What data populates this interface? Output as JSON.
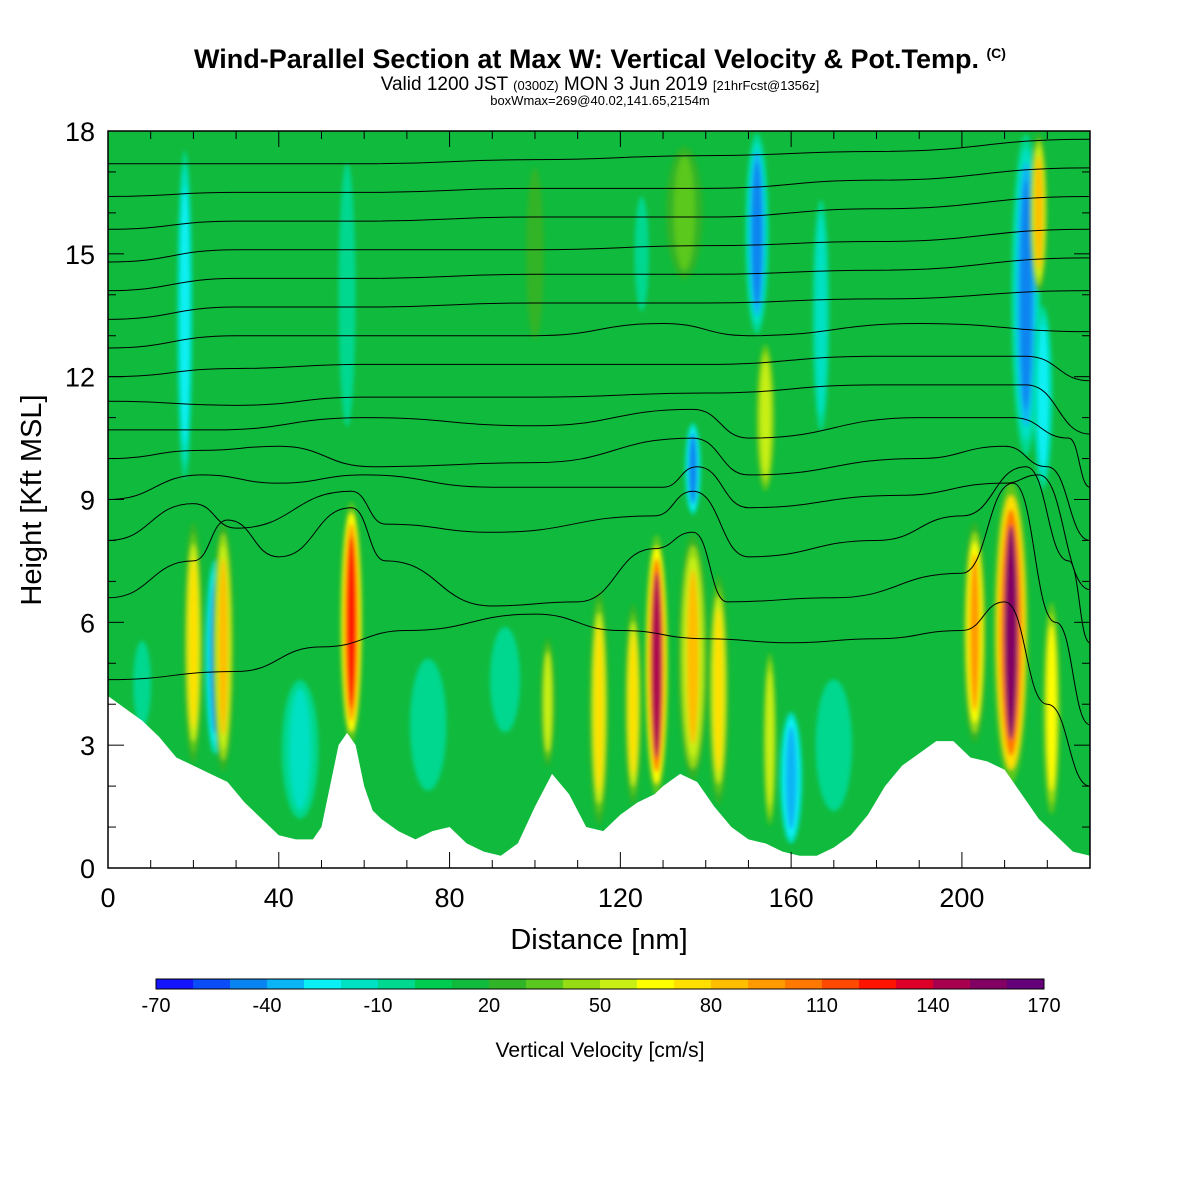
{
  "header": {
    "title": "Wind-Parallel Section at Max W: Vertical Velocity & Pot.Temp.",
    "copyright": "(C)",
    "valid_a": "Valid 1200 JST",
    "valid_b": "(0300Z)",
    "valid_c": "MON 3 Jun 2019",
    "valid_d": "[21hrFcst@1356z]",
    "box_info": "boxWmax=269@40.02,141.65,2154m"
  },
  "chart_data": {
    "type": "heatmap",
    "xlabel": "Distance [nm]",
    "ylabel": "Height [Kft MSL]",
    "xlim": [
      0,
      230
    ],
    "ylim": [
      0,
      18
    ],
    "x_ticks": [
      0,
      40,
      80,
      120,
      160,
      200
    ],
    "y_ticks": [
      0,
      3,
      6,
      9,
      12,
      15,
      18
    ],
    "background_w": 0,
    "terrain": [
      [
        0,
        4.2
      ],
      [
        4,
        3.9
      ],
      [
        8,
        3.6
      ],
      [
        12,
        3.2
      ],
      [
        16,
        2.7
      ],
      [
        20,
        2.5
      ],
      [
        24,
        2.3
      ],
      [
        28,
        2.1
      ],
      [
        32,
        1.6
      ],
      [
        36,
        1.2
      ],
      [
        40,
        0.8
      ],
      [
        44,
        0.7
      ],
      [
        48,
        0.7
      ],
      [
        50,
        1.0
      ],
      [
        52,
        2.0
      ],
      [
        54,
        3.0
      ],
      [
        56,
        3.3
      ],
      [
        58,
        3.0
      ],
      [
        60,
        2.0
      ],
      [
        62,
        1.4
      ],
      [
        64,
        1.2
      ],
      [
        68,
        0.9
      ],
      [
        72,
        0.7
      ],
      [
        76,
        0.9
      ],
      [
        80,
        1.0
      ],
      [
        84,
        0.6
      ],
      [
        88,
        0.4
      ],
      [
        92,
        0.3
      ],
      [
        96,
        0.6
      ],
      [
        100,
        1.5
      ],
      [
        104,
        2.3
      ],
      [
        108,
        1.8
      ],
      [
        112,
        1.0
      ],
      [
        116,
        0.9
      ],
      [
        120,
        1.3
      ],
      [
        124,
        1.6
      ],
      [
        128,
        1.8
      ],
      [
        130,
        2.0
      ],
      [
        134,
        2.3
      ],
      [
        138,
        2.1
      ],
      [
        142,
        1.5
      ],
      [
        146,
        1.0
      ],
      [
        150,
        0.7
      ],
      [
        154,
        0.6
      ],
      [
        158,
        0.4
      ],
      [
        162,
        0.3
      ],
      [
        166,
        0.3
      ],
      [
        170,
        0.5
      ],
      [
        174,
        0.8
      ],
      [
        178,
        1.3
      ],
      [
        182,
        2.0
      ],
      [
        186,
        2.5
      ],
      [
        190,
        2.8
      ],
      [
        194,
        3.1
      ],
      [
        198,
        3.1
      ],
      [
        202,
        2.7
      ],
      [
        206,
        2.6
      ],
      [
        210,
        2.4
      ],
      [
        214,
        1.8
      ],
      [
        218,
        1.2
      ],
      [
        222,
        0.8
      ],
      [
        226,
        0.4
      ],
      [
        230,
        0.3
      ]
    ],
    "plumes": [
      {
        "x": 20.0,
        "w": 1.4,
        "y0": 2.5,
        "y1": 8.5,
        "v": 60
      },
      {
        "x": 25.0,
        "w": 1.6,
        "y0": 2.5,
        "y1": 7.8,
        "v": -55
      },
      {
        "x": 27.0,
        "w": 1.5,
        "y0": 2.3,
        "y1": 8.5,
        "v": 70
      },
      {
        "x": 57.0,
        "w": 1.6,
        "y0": 3.0,
        "y1": 9.0,
        "v": 115
      },
      {
        "x": 103.0,
        "w": 1.2,
        "y0": 2.3,
        "y1": 5.8,
        "v": 40
      },
      {
        "x": 115.0,
        "w": 1.4,
        "y0": 1.0,
        "y1": 6.8,
        "v": 60
      },
      {
        "x": 123.0,
        "w": 1.2,
        "y0": 1.5,
        "y1": 6.5,
        "v": 60
      },
      {
        "x": 128.5,
        "w": 1.7,
        "y0": 1.7,
        "y1": 8.2,
        "v": 130
      },
      {
        "x": 137.0,
        "w": 2.2,
        "y0": 2.1,
        "y1": 8.2,
        "v": 70
      },
      {
        "x": 143.0,
        "w": 1.5,
        "y0": 1.5,
        "y1": 7.2,
        "v": 65
      },
      {
        "x": 155.0,
        "w": 1.0,
        "y0": 0.8,
        "y1": 5.5,
        "v": 45
      },
      {
        "x": 160.0,
        "w": 2.0,
        "y0": 0.4,
        "y1": 4.0,
        "v": -50
      },
      {
        "x": 203.0,
        "w": 1.7,
        "y0": 3.0,
        "y1": 8.5,
        "v": 80
      },
      {
        "x": 211.5,
        "w": 2.7,
        "y0": 2.0,
        "y1": 9.5,
        "v": 140
      },
      {
        "x": 221.0,
        "w": 1.5,
        "y0": 1.0,
        "y1": 6.8,
        "v": 50
      },
      {
        "x": 18.0,
        "w": 1.3,
        "y0": 9.0,
        "y1": 18.0,
        "v": -35
      },
      {
        "x": 56.0,
        "w": 2.0,
        "y0": 10.0,
        "y1": 18.0,
        "v": -18
      },
      {
        "x": 137.0,
        "w": 1.3,
        "y0": 8.5,
        "y1": 11.0,
        "v": -55
      },
      {
        "x": 152.0,
        "w": 1.7,
        "y0": 13.0,
        "y1": 18.0,
        "v": -60
      },
      {
        "x": 154.0,
        "w": 1.6,
        "y0": 9.0,
        "y1": 13.0,
        "v": 45
      },
      {
        "x": 167.0,
        "w": 2.0,
        "y0": 10.0,
        "y1": 17.0,
        "v": -25
      },
      {
        "x": 215.0,
        "w": 2.2,
        "y0": 10.0,
        "y1": 18.0,
        "v": -60
      },
      {
        "x": 219.0,
        "w": 1.7,
        "y0": 9.0,
        "y1": 14.0,
        "v": -40
      },
      {
        "x": 218.0,
        "w": 1.2,
        "y0": 14.0,
        "y1": 18.0,
        "v": 70
      },
      {
        "x": 8.0,
        "w": 4.0,
        "y0": 3.0,
        "y1": 6.0,
        "v": -15
      },
      {
        "x": 45.0,
        "w": 5.0,
        "y0": 0.8,
        "y1": 5.0,
        "v": -25
      },
      {
        "x": 75.0,
        "w": 5.0,
        "y0": 1.5,
        "y1": 5.5,
        "v": -20
      },
      {
        "x": 93.0,
        "w": 4.0,
        "y0": 3.0,
        "y1": 6.2,
        "v": -18
      },
      {
        "x": 170.0,
        "w": 5.0,
        "y0": 1.0,
        "y1": 5.0,
        "v": -20
      },
      {
        "x": 135.0,
        "w": 5.0,
        "y0": 14.0,
        "y1": 18.0,
        "v": 25
      },
      {
        "x": 125.0,
        "w": 3.0,
        "y0": 13.0,
        "y1": 17.0,
        "v": -15
      },
      {
        "x": 100.0,
        "w": 4.0,
        "y0": 12.0,
        "y1": 18.0,
        "v": 15
      }
    ],
    "theta_contours": [
      {
        "pts": [
          [
            0,
            4.6
          ],
          [
            30,
            4.8
          ],
          [
            50,
            5.4
          ],
          [
            70,
            5.8
          ],
          [
            100,
            6.2
          ],
          [
            120,
            5.8
          ],
          [
            140,
            5.6
          ],
          [
            160,
            5.5
          ],
          [
            180,
            5.6
          ],
          [
            200,
            5.8
          ],
          [
            210,
            6.5
          ],
          [
            220,
            4.0
          ],
          [
            230,
            2.0
          ]
        ]
      },
      {
        "pts": [
          [
            0,
            6.6
          ],
          [
            20,
            7.5
          ],
          [
            28,
            8.5
          ],
          [
            40,
            7.6
          ],
          [
            57,
            8.8
          ],
          [
            65,
            7.5
          ],
          [
            90,
            6.4
          ],
          [
            110,
            6.5
          ],
          [
            128,
            7.8
          ],
          [
            137,
            8.2
          ],
          [
            145,
            6.5
          ],
          [
            170,
            6.6
          ],
          [
            200,
            7.2
          ],
          [
            212,
            9.4
          ],
          [
            222,
            6.0
          ],
          [
            230,
            3.5
          ]
        ]
      },
      {
        "pts": [
          [
            0,
            8.0
          ],
          [
            20,
            8.9
          ],
          [
            30,
            8.3
          ],
          [
            57,
            9.2
          ],
          [
            65,
            8.4
          ],
          [
            90,
            8.2
          ],
          [
            128,
            8.6
          ],
          [
            137,
            9.2
          ],
          [
            150,
            7.6
          ],
          [
            180,
            8.0
          ],
          [
            200,
            8.6
          ],
          [
            215,
            9.8
          ],
          [
            225,
            7.5
          ],
          [
            230,
            5.5
          ]
        ]
      },
      {
        "pts": [
          [
            0,
            9.0
          ],
          [
            22,
            9.6
          ],
          [
            40,
            9.4
          ],
          [
            60,
            9.6
          ],
          [
            90,
            9.3
          ],
          [
            130,
            9.3
          ],
          [
            138,
            9.8
          ],
          [
            150,
            8.8
          ],
          [
            185,
            9.1
          ],
          [
            210,
            9.4
          ],
          [
            218,
            9.6
          ],
          [
            230,
            6.8
          ]
        ]
      },
      {
        "pts": [
          [
            0,
            10.0
          ],
          [
            22,
            10.2
          ],
          [
            40,
            10.3
          ],
          [
            62,
            9.8
          ],
          [
            100,
            9.9
          ],
          [
            137,
            10.5
          ],
          [
            150,
            9.6
          ],
          [
            190,
            10.0
          ],
          [
            210,
            10.3
          ],
          [
            220,
            9.8
          ],
          [
            230,
            8.0
          ]
        ]
      },
      {
        "pts": [
          [
            0,
            10.7
          ],
          [
            25,
            10.7
          ],
          [
            60,
            11.0
          ],
          [
            100,
            10.8
          ],
          [
            137,
            11.2
          ],
          [
            150,
            10.5
          ],
          [
            190,
            11.0
          ],
          [
            212,
            11.0
          ],
          [
            225,
            10.5
          ],
          [
            230,
            9.3
          ]
        ]
      },
      {
        "pts": [
          [
            0,
            11.4
          ],
          [
            30,
            11.3
          ],
          [
            60,
            11.5
          ],
          [
            100,
            11.5
          ],
          [
            140,
            11.6
          ],
          [
            180,
            11.8
          ],
          [
            215,
            11.8
          ],
          [
            230,
            10.6
          ]
        ]
      },
      {
        "pts": [
          [
            0,
            12.0
          ],
          [
            30,
            12.2
          ],
          [
            60,
            12.3
          ],
          [
            100,
            12.3
          ],
          [
            140,
            12.3
          ],
          [
            180,
            12.5
          ],
          [
            215,
            12.5
          ],
          [
            230,
            11.9
          ]
        ]
      },
      {
        "pts": [
          [
            0,
            12.7
          ],
          [
            30,
            13.0
          ],
          [
            60,
            13.0
          ],
          [
            100,
            13.0
          ],
          [
            130,
            13.3
          ],
          [
            150,
            13.0
          ],
          [
            190,
            13.3
          ],
          [
            230,
            13.1
          ]
        ]
      },
      {
        "pts": [
          [
            0,
            13.4
          ],
          [
            30,
            13.7
          ],
          [
            60,
            13.7
          ],
          [
            100,
            13.8
          ],
          [
            140,
            13.8
          ],
          [
            180,
            13.9
          ],
          [
            230,
            14.1
          ]
        ]
      },
      {
        "pts": [
          [
            0,
            14.1
          ],
          [
            30,
            14.4
          ],
          [
            60,
            14.4
          ],
          [
            100,
            14.5
          ],
          [
            140,
            14.5
          ],
          [
            180,
            14.6
          ],
          [
            230,
            14.9
          ]
        ]
      },
      {
        "pts": [
          [
            0,
            14.8
          ],
          [
            30,
            15.1
          ],
          [
            60,
            15.1
          ],
          [
            100,
            15.1
          ],
          [
            140,
            15.2
          ],
          [
            180,
            15.3
          ],
          [
            230,
            15.6
          ]
        ]
      },
      {
        "pts": [
          [
            0,
            15.6
          ],
          [
            30,
            15.8
          ],
          [
            60,
            15.8
          ],
          [
            100,
            15.9
          ],
          [
            140,
            15.9
          ],
          [
            180,
            16.1
          ],
          [
            230,
            16.4
          ]
        ]
      },
      {
        "pts": [
          [
            0,
            16.4
          ],
          [
            30,
            16.5
          ],
          [
            60,
            16.5
          ],
          [
            100,
            16.6
          ],
          [
            140,
            16.6
          ],
          [
            180,
            16.8
          ],
          [
            230,
            17.1
          ]
        ]
      },
      {
        "pts": [
          [
            0,
            17.2
          ],
          [
            30,
            17.2
          ],
          [
            60,
            17.2
          ],
          [
            100,
            17.3
          ],
          [
            140,
            17.4
          ],
          [
            180,
            17.5
          ],
          [
            230,
            17.8
          ]
        ]
      }
    ],
    "colorbar": {
      "label": "Vertical Velocity [cm/s]",
      "tick_labels": [
        "-70",
        "-40",
        "-10",
        "20",
        "50",
        "80",
        "110",
        "140",
        "170"
      ],
      "colors": [
        "#1414ff",
        "#0a4cf5",
        "#0a84f0",
        "#0ab4f5",
        "#0af0f5",
        "#00e1c3",
        "#00d890",
        "#00cd50",
        "#10ba3c",
        "#32b428",
        "#5ac81e",
        "#96dc14",
        "#c8f014",
        "#ffff00",
        "#ffe000",
        "#ffbe00",
        "#ff9a00",
        "#ff7800",
        "#ff4800",
        "#ff1400",
        "#dc0028",
        "#aa0050",
        "#820064",
        "#640078"
      ]
    }
  }
}
